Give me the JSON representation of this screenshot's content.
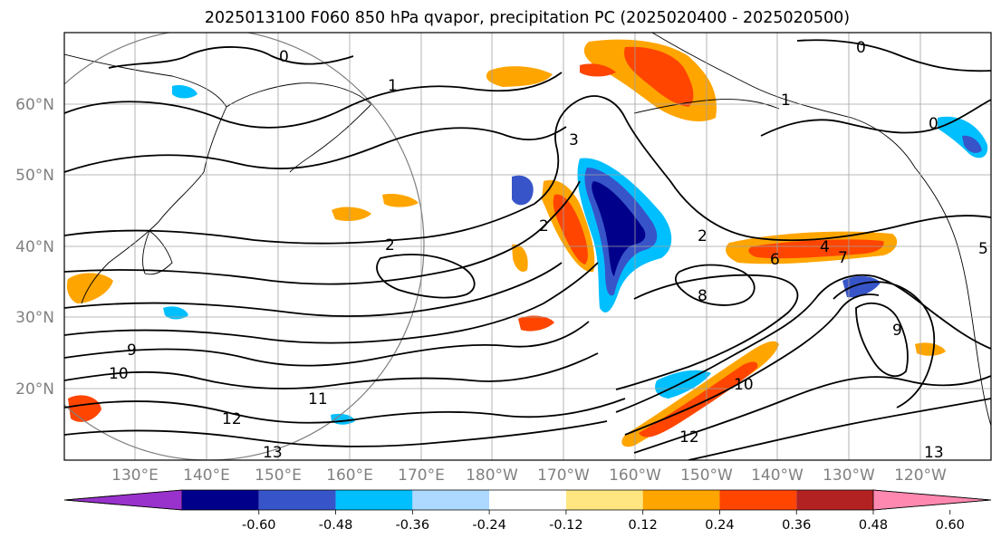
{
  "title": "2025013100 F060 850 hPa qvapor, precipitation PC (2025020400 - 2025020500)",
  "map": {
    "lon_labels": [
      "130°E",
      "140°E",
      "150°E",
      "160°E",
      "170°E",
      "180°W",
      "170°W",
      "160°W",
      "150°W",
      "140°W",
      "130°W",
      "120°W"
    ],
    "lat_labels": [
      "60°N",
      "50°N",
      "40°N",
      "30°N",
      "20°N"
    ],
    "land_color": "#ffffff",
    "coast_color": "#000000",
    "grid_color": "#a0a0a0",
    "contour_color": "#000000",
    "contour_labels": [
      "0",
      "0",
      "0",
      "1",
      "1",
      "2",
      "2",
      "2",
      "3",
      "4",
      "5",
      "6",
      "7",
      "8",
      "9",
      "9",
      "10",
      "10",
      "11",
      "12",
      "12",
      "13",
      "13"
    ]
  },
  "colorbar": {
    "tick_labels": [
      "-0.60",
      "-0.48",
      "-0.36",
      "-0.24",
      "-0.12",
      "0.12",
      "0.24",
      "0.36",
      "0.48",
      "0.60"
    ],
    "colors": [
      "#9932cc",
      "#00008b",
      "#3755c8",
      "#00bfff",
      "#add8ff",
      "#ffffff",
      "#ffe680",
      "#ffa500",
      "#ff4500",
      "#b22222",
      "#ff88b0"
    ]
  }
}
